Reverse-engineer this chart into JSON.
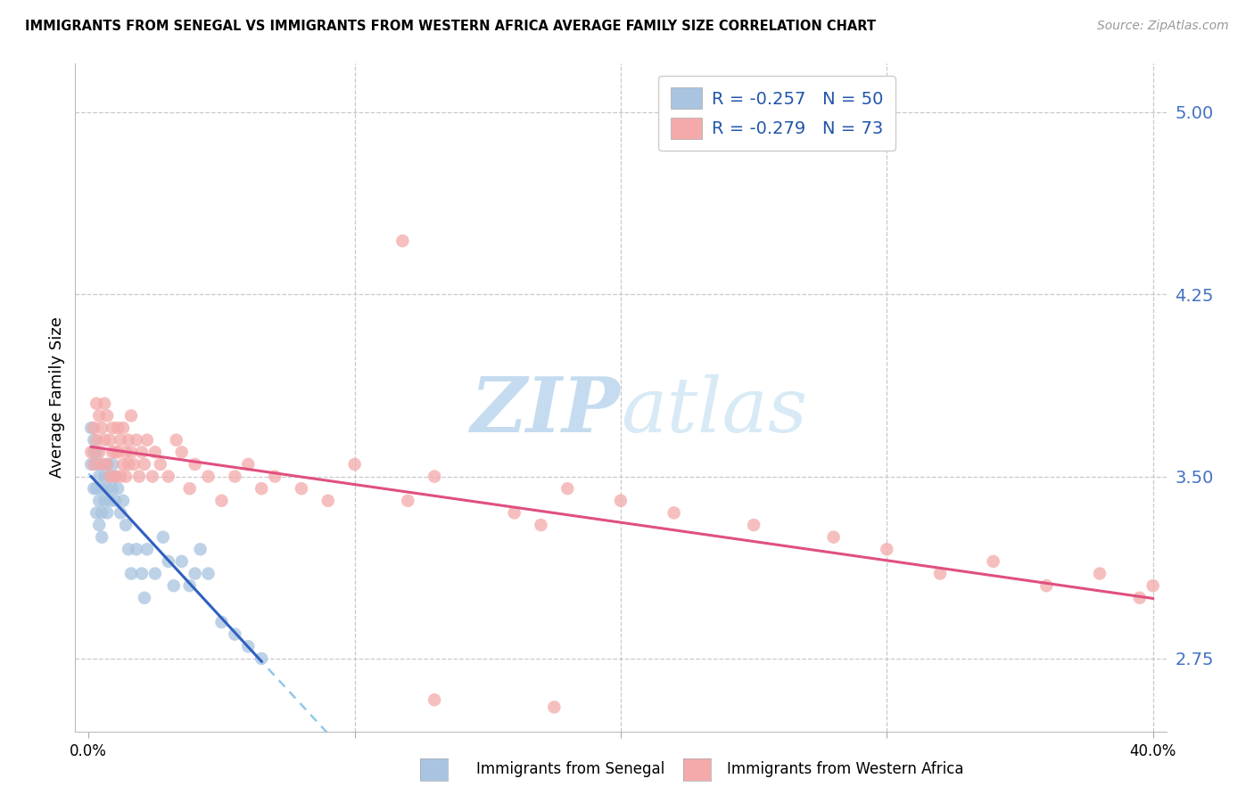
{
  "title": "IMMIGRANTS FROM SENEGAL VS IMMIGRANTS FROM WESTERN AFRICA AVERAGE FAMILY SIZE CORRELATION CHART",
  "source": "Source: ZipAtlas.com",
  "ylabel": "Average Family Size",
  "right_yticks": [
    2.75,
    3.5,
    4.25,
    5.0
  ],
  "legend1_label": "Immigrants from Senegal",
  "legend2_label": "Immigrants from Western Africa",
  "r1": -0.257,
  "n1": 50,
  "r2": -0.279,
  "n2": 73,
  "color_blue": "#A8C4E0",
  "color_pink": "#F4AAAA",
  "color_line_blue": "#3060C0",
  "color_line_pink": "#E05080",
  "color_dashed": "#90C8E8",
  "watermark_zip": "ZIP",
  "watermark_atlas": "atlas",
  "xmin": 0.0,
  "xmax": 0.4,
  "ymin": 2.45,
  "ymax": 5.2,
  "senegal_x": [
    0.001,
    0.001,
    0.002,
    0.002,
    0.002,
    0.003,
    0.003,
    0.003,
    0.003,
    0.004,
    0.004,
    0.004,
    0.005,
    0.005,
    0.005,
    0.005,
    0.006,
    0.006,
    0.007,
    0.007,
    0.007,
    0.008,
    0.008,
    0.009,
    0.009,
    0.01,
    0.01,
    0.011,
    0.012,
    0.013,
    0.014,
    0.015,
    0.016,
    0.018,
    0.02,
    0.021,
    0.022,
    0.025,
    0.028,
    0.03,
    0.032,
    0.035,
    0.038,
    0.04,
    0.042,
    0.045,
    0.05,
    0.055,
    0.06,
    0.065
  ],
  "senegal_y": [
    3.55,
    3.7,
    3.6,
    3.45,
    3.65,
    3.55,
    3.45,
    3.35,
    3.6,
    3.5,
    3.4,
    3.3,
    3.55,
    3.45,
    3.35,
    3.25,
    3.5,
    3.4,
    3.55,
    3.45,
    3.35,
    3.5,
    3.4,
    3.55,
    3.45,
    3.5,
    3.4,
    3.45,
    3.35,
    3.4,
    3.3,
    3.2,
    3.1,
    3.2,
    3.1,
    3.0,
    3.2,
    3.1,
    3.25,
    3.15,
    3.05,
    3.15,
    3.05,
    3.1,
    3.2,
    3.1,
    2.9,
    2.85,
    2.8,
    2.75
  ],
  "western_x": [
    0.001,
    0.002,
    0.002,
    0.003,
    0.003,
    0.004,
    0.004,
    0.005,
    0.005,
    0.006,
    0.006,
    0.007,
    0.007,
    0.008,
    0.008,
    0.009,
    0.009,
    0.01,
    0.01,
    0.011,
    0.011,
    0.012,
    0.012,
    0.013,
    0.013,
    0.014,
    0.014,
    0.015,
    0.015,
    0.016,
    0.016,
    0.017,
    0.018,
    0.019,
    0.02,
    0.021,
    0.022,
    0.024,
    0.025,
    0.027,
    0.03,
    0.033,
    0.035,
    0.038,
    0.04,
    0.045,
    0.05,
    0.055,
    0.06,
    0.065,
    0.07,
    0.08,
    0.09,
    0.1,
    0.12,
    0.13,
    0.16,
    0.17,
    0.18,
    0.2,
    0.22,
    0.25,
    0.28,
    0.3,
    0.32,
    0.34,
    0.36,
    0.38,
    0.395,
    0.4,
    0.118,
    0.13,
    0.175
  ],
  "western_y": [
    3.6,
    3.7,
    3.55,
    3.8,
    3.65,
    3.75,
    3.6,
    3.7,
    3.55,
    3.8,
    3.65,
    3.75,
    3.55,
    3.65,
    3.5,
    3.6,
    3.7,
    3.6,
    3.5,
    3.7,
    3.6,
    3.5,
    3.65,
    3.55,
    3.7,
    3.6,
    3.5,
    3.65,
    3.55,
    3.75,
    3.6,
    3.55,
    3.65,
    3.5,
    3.6,
    3.55,
    3.65,
    3.5,
    3.6,
    3.55,
    3.5,
    3.65,
    3.6,
    3.45,
    3.55,
    3.5,
    3.4,
    3.5,
    3.55,
    3.45,
    3.5,
    3.45,
    3.4,
    3.55,
    3.4,
    3.5,
    3.35,
    3.3,
    3.45,
    3.4,
    3.35,
    3.3,
    3.25,
    3.2,
    3.1,
    3.15,
    3.05,
    3.1,
    3.0,
    3.05,
    4.47,
    2.58,
    2.55
  ]
}
